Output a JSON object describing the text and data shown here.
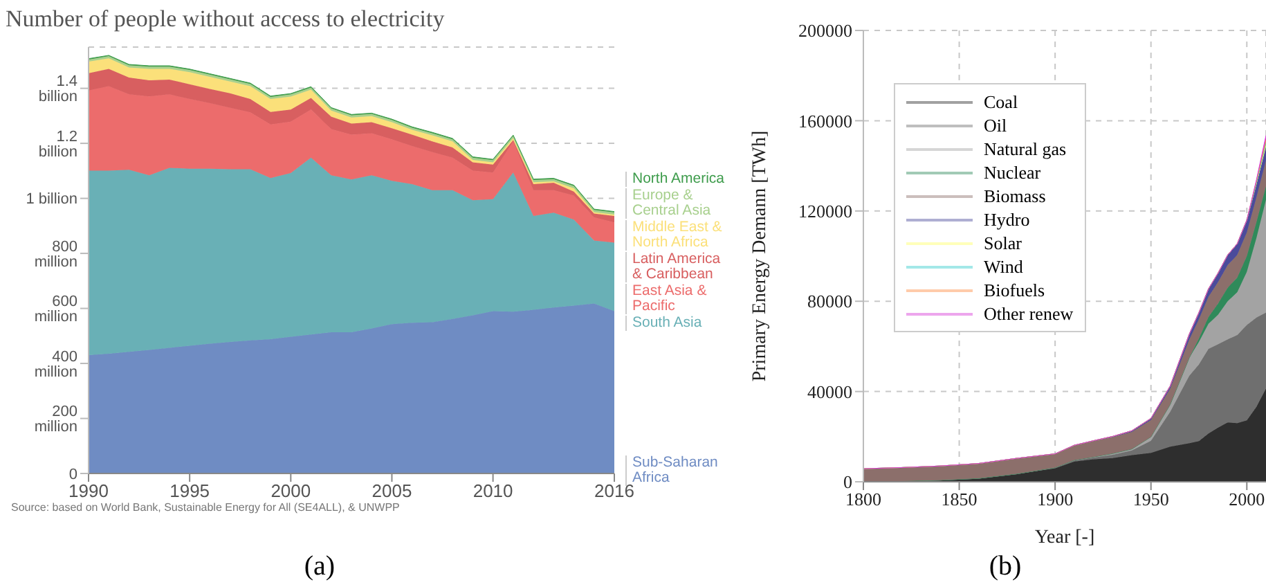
{
  "chart_data": [
    {
      "type": "area",
      "title": "Number of people without access to electricity",
      "stacked": true,
      "grid": "y",
      "legend": "right",
      "x": [
        1990,
        1991,
        1992,
        1993,
        1994,
        1995,
        1996,
        1997,
        1998,
        1999,
        2000,
        2001,
        2002,
        2003,
        2004,
        2005,
        2006,
        2007,
        2008,
        2009,
        2010,
        2011,
        2012,
        2013,
        2014,
        2015,
        2016
      ],
      "xlim": [
        1990,
        2016
      ],
      "xticks": [
        1990,
        1995,
        2000,
        2005,
        2010,
        2016
      ],
      "ylim": [
        0,
        1550000000
      ],
      "yticks": [
        0,
        {
          "value": 200000000,
          "label": "200 million"
        },
        {
          "value": 400000000,
          "label": "400 million"
        },
        {
          "value": 600000000,
          "label": "600 million"
        },
        {
          "value": 800000000,
          "label": "800 million"
        },
        {
          "value": 1000000000,
          "label": "1 billion"
        },
        {
          "value": 1200000000,
          "label": "1.2 billion"
        },
        {
          "value": 1400000000,
          "label": "1.4 billion"
        }
      ],
      "series": [
        {
          "name": "Sub-Saharan Africa",
          "color": "#6f8cc3",
          "values": [
            430000000,
            435000000,
            442000000,
            449000000,
            457000000,
            464000000,
            472000000,
            478000000,
            484000000,
            488000000,
            497000000,
            505000000,
            513000000,
            513000000,
            527000000,
            543000000,
            548000000,
            550000000,
            562000000,
            575000000,
            590000000,
            588000000,
            595000000,
            603000000,
            610000000,
            618000000,
            590000000
          ]
        },
        {
          "name": "South Asia",
          "color": "#69b0b6",
          "values": [
            671000000,
            666000000,
            662000000,
            635000000,
            654000000,
            644000000,
            636000000,
            628000000,
            622000000,
            586000000,
            595000000,
            643000000,
            571000000,
            556000000,
            557000000,
            521000000,
            504000000,
            480000000,
            468000000,
            418000000,
            407000000,
            506000000,
            341000000,
            345000000,
            313000000,
            229000000,
            249000000
          ]
        },
        {
          "name": "East Asia & Pacific",
          "color": "#ec6c6c",
          "values": [
            291000000,
            307000000,
            274000000,
            287000000,
            267000000,
            253000000,
            238000000,
            223000000,
            207000000,
            195000000,
            187000000,
            175000000,
            168000000,
            163000000,
            153000000,
            151000000,
            138000000,
            138000000,
            118000000,
            108000000,
            97000000,
            113000000,
            94000000,
            82000000,
            87000000,
            84000000,
            74000000
          ]
        },
        {
          "name": "Latin America & Caribbean",
          "color": "#d85f60",
          "values": [
            63000000,
            63000000,
            61000000,
            58000000,
            54000000,
            54000000,
            52000000,
            53000000,
            48000000,
            45000000,
            44000000,
            42000000,
            45000000,
            40000000,
            40000000,
            40000000,
            42000000,
            39000000,
            37000000,
            30000000,
            29000000,
            5000000,
            22000000,
            27000000,
            15000000,
            14000000,
            23000000
          ]
        },
        {
          "name": "Middle East & North Africa",
          "color": "#fbe07a",
          "values": [
            42000000,
            38000000,
            37000000,
            42000000,
            39000000,
            44000000,
            44000000,
            43000000,
            47000000,
            47000000,
            47000000,
            30000000,
            22000000,
            22000000,
            22000000,
            22000000,
            17000000,
            22000000,
            22000000,
            9000000,
            8000000,
            7000000,
            7000000,
            5000000,
            12000000,
            5000000,
            5000000
          ]
        },
        {
          "name": "Europe & Central Asia",
          "color": "#a8d08e",
          "values": [
            8000000,
            8000000,
            8000000,
            8000000,
            8000000,
            8000000,
            8000000,
            8000000,
            8000000,
            8000000,
            8000000,
            8000000,
            8000000,
            8000000,
            8000000,
            8000000,
            8000000,
            8000000,
            8000000,
            8000000,
            8000000,
            8000000,
            8000000,
            8000000,
            8000000,
            8000000,
            8000000
          ]
        },
        {
          "name": "North America",
          "color": "#3e9c4c",
          "values": [
            3000000,
            3000000,
            3000000,
            3000000,
            3000000,
            3000000,
            3000000,
            3000000,
            3000000,
            3000000,
            3000000,
            3000000,
            3000000,
            3000000,
            3000000,
            3000000,
            3000000,
            3000000,
            3000000,
            3000000,
            3000000,
            3000000,
            3000000,
            3000000,
            3000000,
            3000000,
            3000000
          ]
        }
      ],
      "annotations": [
        "Source: based on World Bank, Sustainable Energy for All (SE4ALL), & UNWPP",
        "(a)"
      ]
    },
    {
      "type": "area",
      "stacked": true,
      "grid": true,
      "legend": "top left",
      "xlabel": "Year [-]",
      "ylabel": "Primary Energy Demann [TWh]",
      "x": [
        1800,
        1820,
        1840,
        1860,
        1880,
        1900,
        1910,
        1920,
        1930,
        1940,
        1950,
        1960,
        1970,
        1975,
        1980,
        1985,
        1990,
        1995,
        2000,
        2005,
        2010
      ],
      "xlim": [
        1800,
        2010
      ],
      "xticks": [
        1800,
        1850,
        1900,
        1950,
        2000
      ],
      "ylim": [
        0,
        200000
      ],
      "yticks": [
        0,
        40000,
        80000,
        120000,
        160000,
        200000
      ],
      "series": [
        {
          "name": "Coal",
          "color": "#2e2e2e",
          "values": [
            100,
            300,
            700,
            1500,
            3500,
            6000,
            9000,
            10000,
            10500,
            11800,
            12800,
            15600,
            17100,
            18000,
            21400,
            24000,
            26300,
            26000,
            27200,
            33200,
            41300
          ]
        },
        {
          "name": "Oil",
          "color": "#6f6f6f",
          "values": [
            0,
            0,
            0,
            0,
            0,
            200,
            400,
            700,
            1500,
            2100,
            5400,
            15400,
            29900,
            34000,
            37500,
            37000,
            36800,
            39000,
            42300,
            39600,
            33700
          ]
        },
        {
          "name": "Natural gas",
          "color": "#a3a3a3",
          "values": [
            0,
            0,
            0,
            0,
            0,
            100,
            200,
            300,
            500,
            600,
            1700,
            3200,
            8000,
            10000,
            11100,
            13000,
            16900,
            19000,
            23500,
            35200,
            50000
          ]
        },
        {
          "name": "Nuclear",
          "color": "#2f8a5a",
          "values": [
            0,
            0,
            0,
            0,
            0,
            0,
            0,
            0,
            0,
            0,
            0,
            0,
            0,
            1500,
            3000,
            5000,
            6000,
            6500,
            7000,
            7000,
            6000
          ]
        },
        {
          "name": "Biomass",
          "color": "#8c6f6b",
          "values": [
            5700,
            6000,
            6300,
            6600,
            6900,
            6000,
            6500,
            7000,
            7300,
            7600,
            7500,
            7000,
            8000,
            8500,
            9000,
            9500,
            10000,
            10000,
            10500,
            11000,
            11500
          ]
        },
        {
          "name": "Hydro",
          "color": "#4b4b9b",
          "values": [
            0,
            0,
            0,
            0,
            0,
            100,
            100,
            200,
            300,
            500,
            700,
            1200,
            2500,
            3000,
            3500,
            4000,
            4500,
            5000,
            5500,
            5800,
            6000
          ]
        },
        {
          "name": "Solar",
          "color": "#ffff66",
          "values": [
            0,
            0,
            0,
            0,
            0,
            0,
            0,
            0,
            0,
            0,
            0,
            0,
            0,
            0,
            0,
            0,
            0,
            0,
            0,
            400,
            1200
          ]
        },
        {
          "name": "Wind",
          "color": "#33cccc",
          "values": [
            0,
            0,
            0,
            0,
            0,
            0,
            0,
            0,
            0,
            0,
            0,
            0,
            0,
            0,
            0,
            0,
            0,
            0,
            0,
            300,
            800
          ]
        },
        {
          "name": "Biofuels",
          "color": "#ff8c42",
          "values": [
            0,
            0,
            0,
            0,
            0,
            0,
            0,
            0,
            0,
            0,
            0,
            0,
            0,
            0,
            0,
            0,
            0,
            0,
            0,
            800,
            1500
          ]
        },
        {
          "name": "Other renew",
          "color": "#d63ad6",
          "values": [
            0,
            0,
            0,
            0,
            0,
            0,
            0,
            0,
            0,
            0,
            0,
            0,
            0,
            0,
            0,
            0,
            0,
            0,
            0,
            500,
            1500
          ]
        }
      ],
      "annotations": [
        "(b)"
      ]
    }
  ]
}
